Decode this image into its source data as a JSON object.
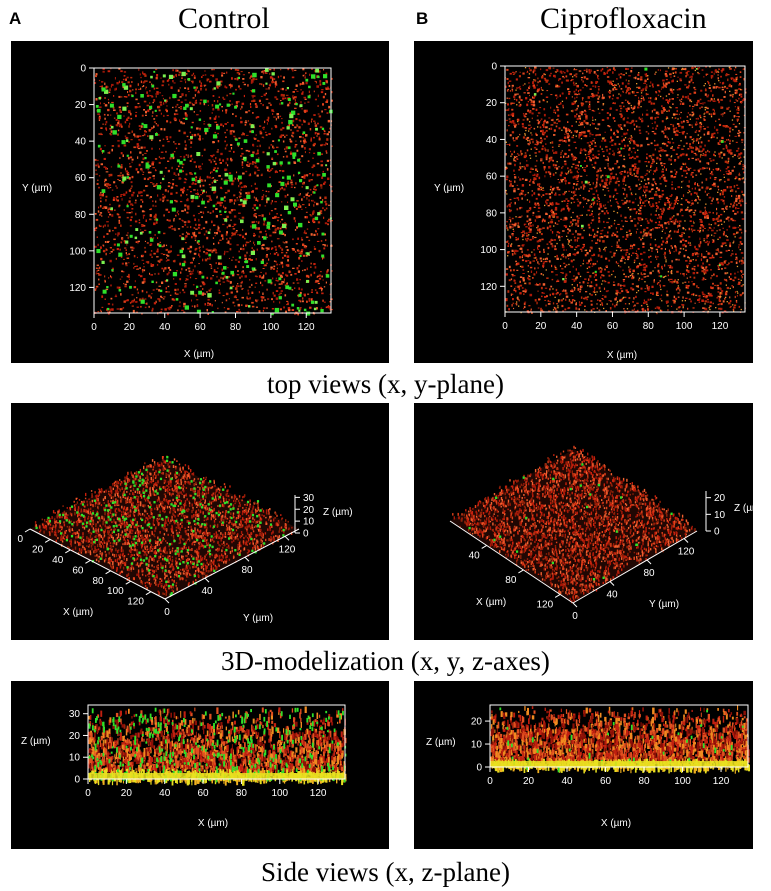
{
  "figure": {
    "panel_letters": [
      "A",
      "B"
    ],
    "column_titles": [
      "Control",
      "Ciprofloxacin"
    ],
    "row_captions": [
      "top views (x, y-plane)",
      "3D-modelization (x, y, z-axes)",
      "Side views (x, z-plane)"
    ]
  },
  "top_view": {
    "x_label": "X (µm)",
    "y_label": "Y (µm)",
    "x_ticks": [
      "0",
      "20",
      "40",
      "60",
      "80",
      "100",
      "120"
    ],
    "y_ticks": [
      "0",
      "20",
      "40",
      "60",
      "80",
      "100",
      "120"
    ]
  },
  "model_3d": {
    "x_label": "X (µm)",
    "y_label": "Y (µm)",
    "z_label": "Z (µm)",
    "control": {
      "x_ticks": [
        "0",
        "20",
        "40",
        "60",
        "80",
        "100",
        "120"
      ],
      "y_ticks": [
        "0",
        "40",
        "80",
        "120"
      ],
      "z_ticks": [
        "0",
        "10",
        "20",
        "30"
      ]
    },
    "cipro": {
      "x_ticks": [
        "40",
        "80",
        "120"
      ],
      "y_ticks": [
        "0",
        "40",
        "80",
        "120"
      ],
      "z_ticks": [
        "0",
        "10",
        "20"
      ]
    }
  },
  "side_view": {
    "x_label": "X (µm)",
    "z_label": "Z (µm)",
    "x_ticks": [
      "0",
      "20",
      "40",
      "60",
      "80",
      "100",
      "120"
    ],
    "control_z_ticks": [
      "0",
      "10",
      "20",
      "30"
    ],
    "cipro_z_ticks": [
      "0",
      "10",
      "20"
    ]
  },
  "colors": {
    "background": "#000000",
    "red_stain": "#d42a10",
    "green_stain": "#2fe02a",
    "yellow_base": "#e8e020"
  }
}
